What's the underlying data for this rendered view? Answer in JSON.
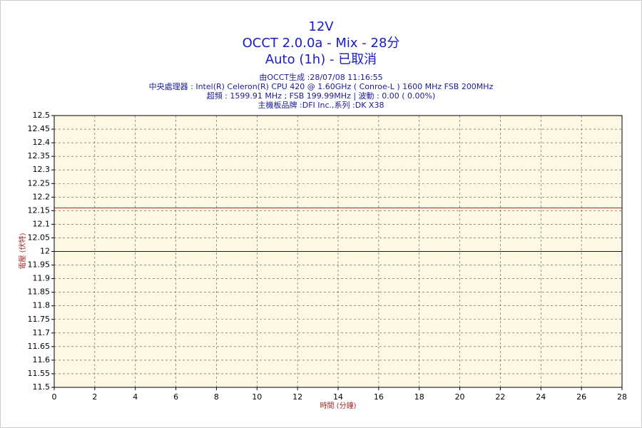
{
  "chart_data": {
    "type": "line",
    "title": [
      "12V",
      "OCCT 2.0.0a - Mix - 28分",
      "Auto (1h) - 已取消"
    ],
    "subtitle": [
      "由OCCT生成 :28/07/08 11:16:55",
      "中央處理器 : Intel(R) Celeron(R) CPU 420 @ 1.60GHz ( Conroe-L ) 1600 MHz FSB 200MHz",
      "超頻 : 1599.91 MHz ; FSB 199.99MHz | 波動 : 0.00 ( 0.00%)",
      "主機板品牌 :DFI Inc.,系列 :DK X38"
    ],
    "x_label": "時間 (分鐘)",
    "y_label": "電壓 (伏特)",
    "x": [
      0,
      28
    ],
    "series": [
      {
        "color": "#a02828",
        "values": [
          12.16,
          12.16
        ]
      },
      {
        "color": "#0000cc",
        "values": [
          12,
          12
        ]
      }
    ],
    "xlim": [
      0,
      28
    ],
    "xticks": [
      0,
      2,
      4,
      6,
      8,
      10,
      12,
      14,
      16,
      18,
      20,
      22,
      24,
      26,
      28
    ],
    "ylim": [
      11.5,
      12.5
    ],
    "yticks": [
      11.5,
      11.55,
      11.6,
      11.65,
      11.7,
      11.75,
      11.8,
      11.85,
      11.9,
      11.95,
      12,
      12.05,
      12.1,
      12.15,
      12.2,
      12.25,
      12.3,
      12.35,
      12.4,
      12.45,
      12.5
    ],
    "grid": true
  }
}
